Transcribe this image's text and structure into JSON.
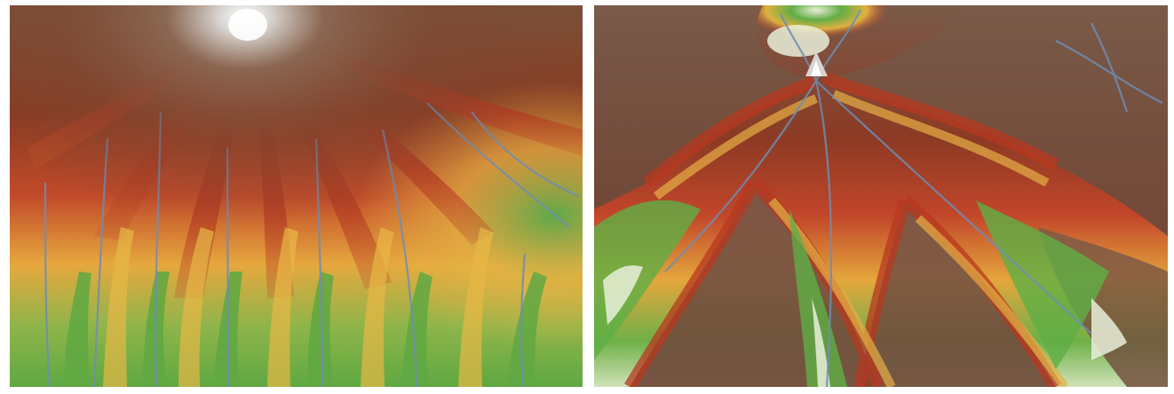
{
  "images": [
    {
      "id": "left",
      "view": "mountain-peak-radial-drainage",
      "palette": {
        "snow": "#f4f4f4",
        "summit": "#7d5a42",
        "high": "#8c2e1a",
        "mid": "#c0442a",
        "low": "#e8b846",
        "valley": "#6fae45",
        "stream": "#6f8db3"
      }
    },
    {
      "id": "right",
      "view": "ridges-and-valleys-converging-peak",
      "palette": {
        "snow": "#f4f4f4",
        "ridge": "#7a5a48",
        "high": "#8c2e1a",
        "mid": "#c0442a",
        "low": "#e8b846",
        "valley": "#5faf45",
        "floor": "#e9eed9",
        "stream": "#6f8db3"
      }
    }
  ]
}
